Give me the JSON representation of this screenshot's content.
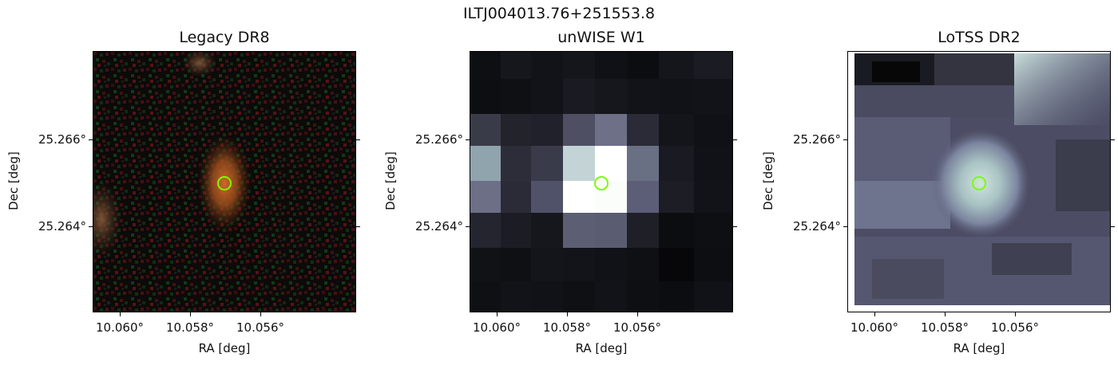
{
  "figure": {
    "title": "ILTJ004013.76+251553.8"
  },
  "panels": [
    {
      "title": "Legacy DR8",
      "xlabel": "RA [deg]",
      "ylabel": "Dec [deg]",
      "xticks": [
        "10.060°",
        "10.058°",
        "10.056°"
      ],
      "yticks": [
        "25.266°",
        "25.264°"
      ]
    },
    {
      "title": "unWISE W1",
      "xlabel": "RA [deg]",
      "ylabel": "Dec [deg]",
      "xticks": [
        "10.060°",
        "10.058°",
        "10.056°"
      ],
      "yticks": [
        "25.266°",
        "25.264°"
      ]
    },
    {
      "title": "LoTSS DR2",
      "xlabel": "RA [deg]",
      "ylabel": "Dec [deg]",
      "xticks": [
        "10.060°",
        "10.058°",
        "10.056°"
      ],
      "yticks": [
        "25.266°",
        "25.264°"
      ]
    }
  ],
  "colors": {
    "marker": "#7cfc00"
  }
}
